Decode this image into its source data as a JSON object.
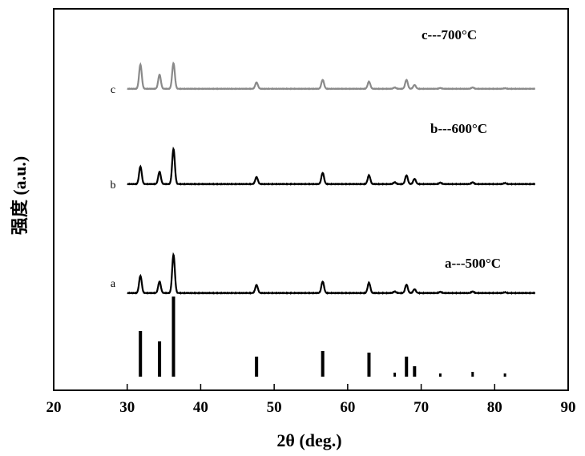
{
  "chart_data": {
    "type": "line",
    "xlabel": "2θ (deg.)",
    "ylabel": "强度 (a.u.)",
    "xlim": [
      20,
      90
    ],
    "xticks": [
      20,
      30,
      40,
      50,
      60,
      70,
      80,
      90
    ],
    "grid": false,
    "x_range_of_series": [
      30,
      85.5
    ],
    "peak_positions": [
      31.8,
      34.4,
      36.3,
      47.6,
      56.6,
      62.9,
      66.4,
      68.0,
      69.1,
      72.6,
      77.0,
      81.4
    ],
    "series": [
      {
        "letter": "a",
        "legend": "a---500°C",
        "color": "#000000",
        "relative_intensities": [
          0.45,
          0.3,
          1.0,
          0.21,
          0.3,
          0.27,
          0.04,
          0.22,
          0.1,
          0.03,
          0.04,
          0.02
        ]
      },
      {
        "letter": "b",
        "legend": "b---600°C",
        "color": "#000000",
        "relative_intensities": [
          0.5,
          0.35,
          1.0,
          0.2,
          0.32,
          0.25,
          0.05,
          0.25,
          0.15,
          0.04,
          0.05,
          0.03
        ]
      },
      {
        "letter": "c",
        "legend": "c---700°C",
        "color": "#8a8a8a",
        "relative_intensities": [
          0.95,
          0.55,
          1.0,
          0.25,
          0.35,
          0.28,
          0.05,
          0.35,
          0.15,
          0.03,
          0.05,
          0.02
        ]
      }
    ],
    "reference_pattern": {
      "x": [
        31.8,
        34.4,
        36.3,
        47.6,
        56.6,
        62.9,
        66.4,
        68.0,
        69.1,
        72.6,
        77.0,
        81.4
      ],
      "relative_intensities": [
        0.57,
        0.44,
        1.0,
        0.25,
        0.32,
        0.3,
        0.05,
        0.25,
        0.13,
        0.04,
        0.06,
        0.04
      ]
    }
  }
}
